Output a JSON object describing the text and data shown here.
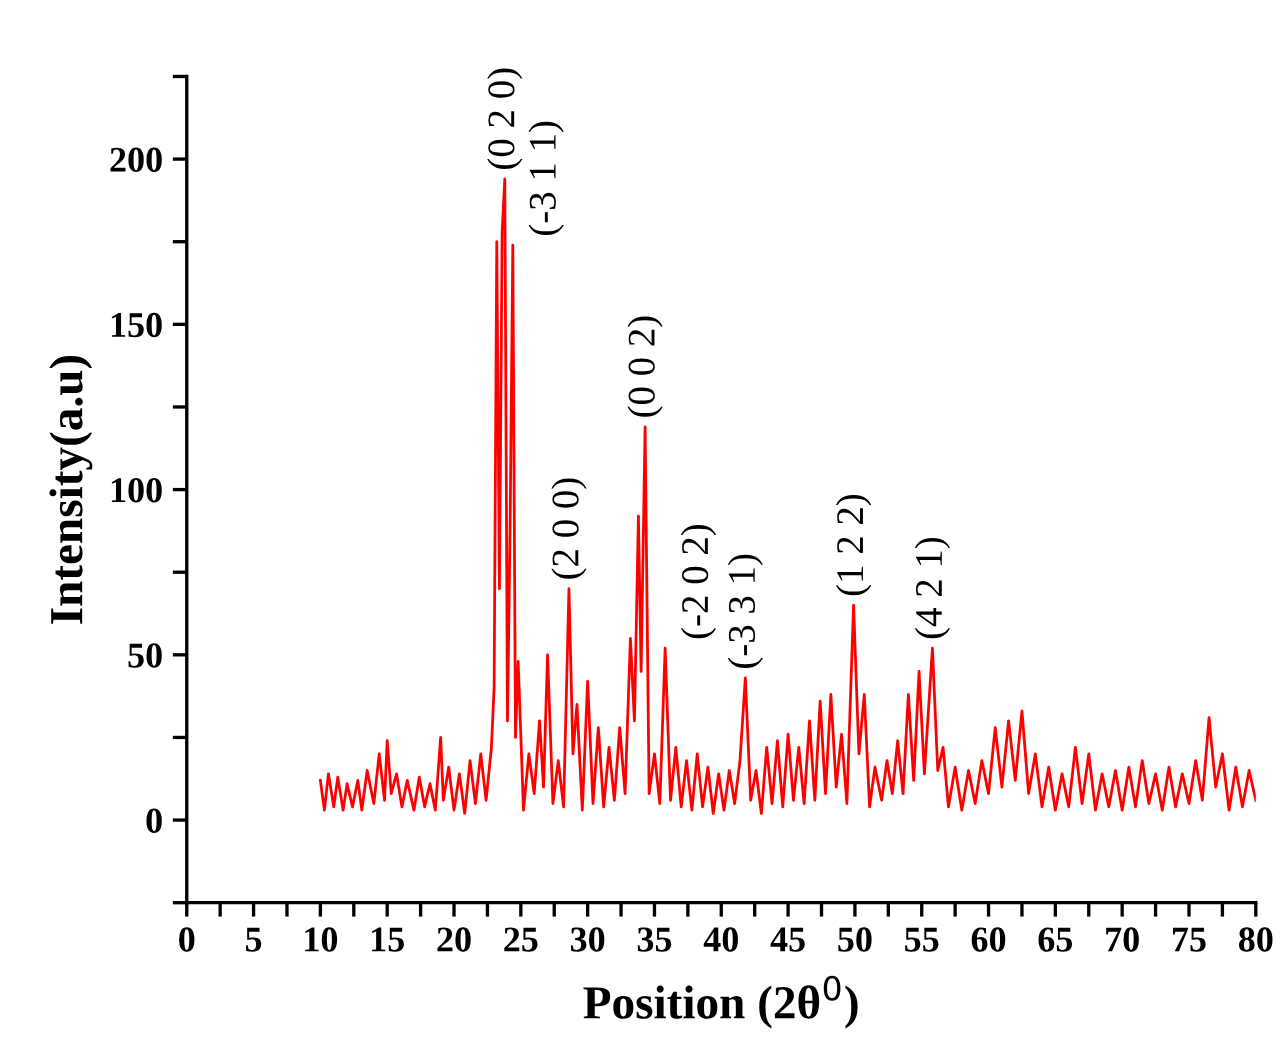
{
  "chart_data": {
    "type": "line",
    "xlabel": "Position (2θ$^{0}$)",
    "ylabel": "Intensity(a.u)",
    "xlim": [
      0,
      80
    ],
    "ylim": [
      -25,
      225
    ],
    "xticks": [
      0,
      {
        "value": 2.5,
        "label": null
      },
      5,
      {
        "value": 7.5,
        "label": null
      },
      10,
      {
        "value": 12.5,
        "label": null
      },
      15,
      {
        "value": 17.5,
        "label": null
      },
      20,
      {
        "value": 22.5,
        "label": null
      },
      25,
      {
        "value": 27.5,
        "label": null
      },
      30,
      {
        "value": 32.5,
        "label": null
      },
      35,
      {
        "value": 37.5,
        "label": null
      },
      40,
      {
        "value": 42.5,
        "label": null
      },
      45,
      {
        "value": 47.5,
        "label": null
      },
      50,
      {
        "value": 52.5,
        "label": null
      },
      55,
      {
        "value": 57.5,
        "label": null
      },
      60,
      {
        "value": 62.5,
        "label": null
      },
      65,
      {
        "value": 67.5,
        "label": null
      },
      70,
      {
        "value": 72.5,
        "label": null
      },
      75,
      {
        "value": 77.5,
        "label": null
      },
      80
    ],
    "yticks": [
      {
        "value": -25,
        "label": null
      },
      0,
      {
        "value": 25,
        "label": null
      },
      50,
      {
        "value": 75,
        "label": null
      },
      100,
      {
        "value": 125,
        "label": null
      },
      150,
      {
        "value": 175,
        "label": null
      },
      200,
      {
        "value": 225,
        "label": null
      }
    ],
    "grid": false,
    "legend": false,
    "marker": "none",
    "line_style": "solid",
    "series": [
      {
        "color": "#ff0000",
        "x": [
          10,
          10.3,
          10.6,
          11,
          11.3,
          11.7,
          12,
          12.4,
          12.8,
          13.1,
          13.5,
          14,
          14.4,
          14.8,
          15,
          15.3,
          15.7,
          16.1,
          16.5,
          17,
          17.4,
          17.8,
          18.2,
          18.6,
          19,
          19.2,
          19.6,
          20,
          20.4,
          20.8,
          21.2,
          21.6,
          22,
          22.4,
          22.8,
          23,
          23.2,
          23.4,
          23.6,
          23.8,
          24.0,
          24.2,
          24.4,
          24.6,
          24.8,
          25.2,
          25.6,
          26,
          26.4,
          26.7,
          27,
          27.4,
          27.8,
          28.2,
          28.6,
          28.9,
          29.2,
          29.6,
          30,
          30.4,
          30.8,
          31.2,
          31.6,
          32,
          32.4,
          32.8,
          33.2,
          33.5,
          33.8,
          34,
          34.3,
          34.6,
          35,
          35.4,
          35.8,
          36.2,
          36.6,
          37,
          37.4,
          37.8,
          38.2,
          38.6,
          39,
          39.4,
          39.8,
          40.2,
          40.6,
          41,
          41.4,
          41.8,
          42.2,
          42.6,
          43,
          43.4,
          43.8,
          44.2,
          44.6,
          45,
          45.4,
          45.8,
          46.2,
          46.6,
          47,
          47.4,
          47.8,
          48.2,
          48.6,
          49,
          49.4,
          49.9,
          50.3,
          50.7,
          51.1,
          51.5,
          52,
          52.4,
          52.8,
          53.2,
          53.6,
          54,
          54.4,
          54.8,
          55.2,
          55.8,
          56.2,
          56.6,
          57,
          57.5,
          58,
          58.5,
          59,
          59.5,
          60,
          60.5,
          61,
          61.5,
          62,
          62.5,
          63,
          63.5,
          64,
          64.5,
          65,
          65.5,
          66,
          66.5,
          67,
          67.5,
          68,
          68.5,
          69,
          69.5,
          70,
          70.5,
          71,
          71.5,
          72,
          72.5,
          73,
          73.5,
          74,
          74.5,
          75,
          75.5,
          76,
          76.5,
          77,
          77.5,
          78,
          78.5,
          79,
          79.5,
          80
        ],
        "values": [
          12,
          3,
          14,
          4,
          13,
          3,
          11,
          4,
          12,
          3,
          15,
          5,
          20,
          6,
          24,
          8,
          14,
          4,
          12,
          3,
          13,
          4,
          11,
          3,
          25,
          6,
          16,
          3,
          14,
          2,
          18,
          5,
          20,
          6,
          22,
          40,
          175,
          70,
          178,
          194,
          30,
          90,
          174,
          25,
          48,
          3,
          20,
          8,
          30,
          10,
          50,
          5,
          18,
          4,
          70,
          20,
          35,
          3,
          42,
          5,
          28,
          4,
          22,
          6,
          28,
          8,
          55,
          30,
          92,
          45,
          119,
          8,
          20,
          5,
          52,
          6,
          22,
          4,
          18,
          3,
          20,
          4,
          16,
          2,
          14,
          3,
          15,
          5,
          18,
          43,
          6,
          15,
          2,
          22,
          5,
          24,
          4,
          26,
          6,
          22,
          5,
          30,
          6,
          36,
          8,
          38,
          10,
          26,
          5,
          65,
          20,
          38,
          4,
          16,
          6,
          18,
          8,
          24,
          8,
          38,
          12,
          45,
          14,
          52,
          15,
          22,
          4,
          16,
          3,
          15,
          5,
          18,
          8,
          28,
          10,
          30,
          12,
          33,
          8,
          20,
          4,
          16,
          3,
          14,
          4,
          22,
          5,
          20,
          3,
          14,
          4,
          15,
          3,
          16,
          4,
          18,
          5,
          14,
          3,
          16,
          4,
          14,
          5,
          18,
          6,
          31,
          10,
          20,
          3,
          16,
          4,
          15,
          6
        ]
      }
    ],
    "annotations": [
      {
        "text": "(0 2 0)",
        "x": 23.8,
        "y": 194
      },
      {
        "text": "(-3 1 1)",
        "x": 24.4,
        "y": 174
      },
      {
        "text": "(2 0 0)",
        "x": 28.6,
        "y": 70
      },
      {
        "text": "(0 0 2)",
        "x": 34.3,
        "y": 119
      },
      {
        "text": "(-2 0 2)",
        "x": 35.8,
        "y": 52
      },
      {
        "text": "(-3 3 1)",
        "x": 41.8,
        "y": 43
      },
      {
        "text": "(1 2 2)",
        "x": 49.9,
        "y": 65
      },
      {
        "text": "(4 2 1)",
        "x": 55.8,
        "y": 52
      }
    ]
  }
}
